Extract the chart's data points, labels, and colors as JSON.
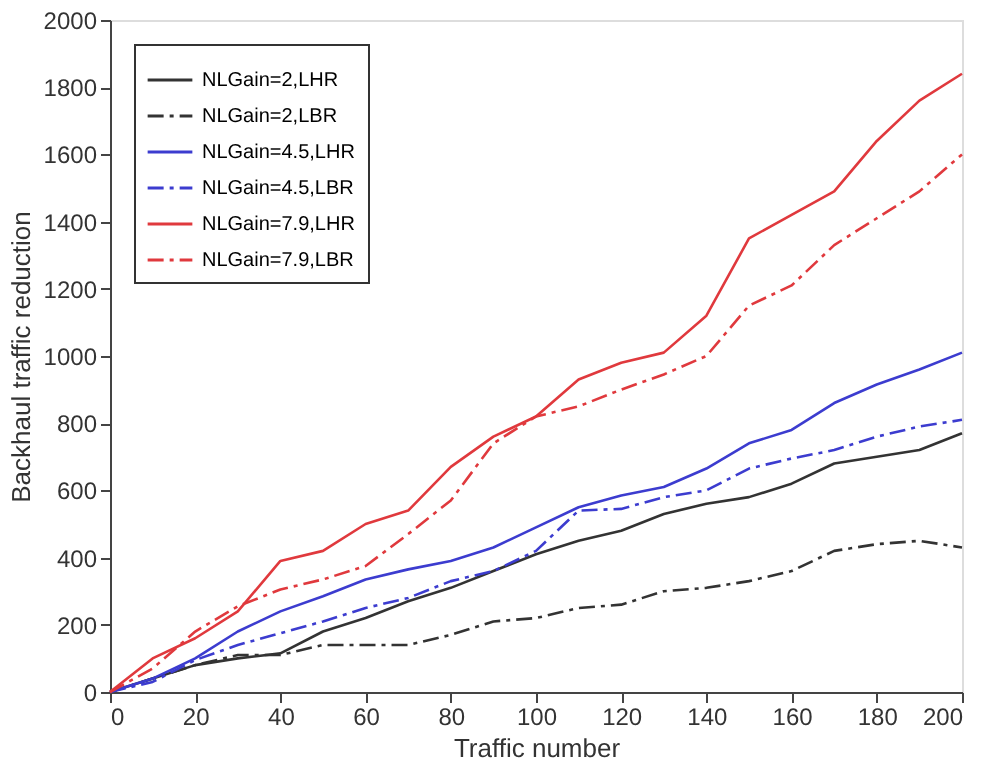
{
  "chart_data": {
    "type": "line",
    "xlabel": "Traffic number",
    "ylabel": "Backhaul traffic reduction",
    "x": [
      0,
      10,
      20,
      30,
      40,
      50,
      60,
      70,
      80,
      90,
      100,
      110,
      120,
      130,
      140,
      150,
      160,
      170,
      180,
      190,
      200
    ],
    "xlim": [
      0,
      200
    ],
    "xticks": [
      0,
      20,
      40,
      60,
      80,
      100,
      120,
      140,
      160,
      180,
      200
    ],
    "ylim": [
      0,
      2000
    ],
    "yticks": [
      0,
      200,
      400,
      600,
      800,
      1000,
      1200,
      1400,
      1600,
      1800,
      2000
    ],
    "grid": false,
    "legend": "top left",
    "marker": "none",
    "series": [
      {
        "name": "NLGain=2,LHR",
        "color": "#333333",
        "line_style": "solid",
        "values": [
          0,
          40,
          80,
          100,
          115,
          180,
          220,
          270,
          310,
          360,
          410,
          450,
          480,
          530,
          560,
          580,
          620,
          680,
          700,
          720,
          770
        ]
      },
      {
        "name": "NLGain=2,LBR",
        "color": "#333333",
        "line_style": "dashed",
        "values": [
          0,
          40,
          80,
          110,
          110,
          140,
          140,
          140,
          170,
          210,
          220,
          250,
          260,
          300,
          310,
          330,
          360,
          420,
          440,
          450,
          430
        ]
      },
      {
        "name": "NLGain=4.5,LHR",
        "color": "#3c3ccf",
        "line_style": "solid",
        "values": [
          0,
          40,
          100,
          180,
          240,
          285,
          335,
          365,
          390,
          430,
          490,
          550,
          585,
          610,
          665,
          740,
          780,
          860,
          915,
          960,
          1010
        ]
      },
      {
        "name": "NLGain=4.5,LBR",
        "color": "#3c3ccf",
        "line_style": "dashed",
        "values": [
          0,
          30,
          95,
          140,
          175,
          210,
          250,
          280,
          330,
          360,
          420,
          540,
          545,
          580,
          600,
          665,
          695,
          720,
          760,
          790,
          810
        ]
      },
      {
        "name": "NLGain=7.9,LHR",
        "color": "#e0393d",
        "line_style": "solid",
        "values": [
          0,
          100,
          160,
          240,
          390,
          420,
          500,
          540,
          670,
          760,
          820,
          930,
          980,
          1010,
          1120,
          1350,
          1420,
          1490,
          1640,
          1760,
          1840
        ]
      },
      {
        "name": "NLGain=7.9,LBR",
        "color": "#e0393d",
        "line_style": "dashed",
        "values": [
          0,
          70,
          180,
          255,
          305,
          335,
          375,
          470,
          570,
          740,
          820,
          850,
          900,
          945,
          1000,
          1150,
          1210,
          1330,
          1410,
          1490,
          1600
        ]
      }
    ]
  }
}
